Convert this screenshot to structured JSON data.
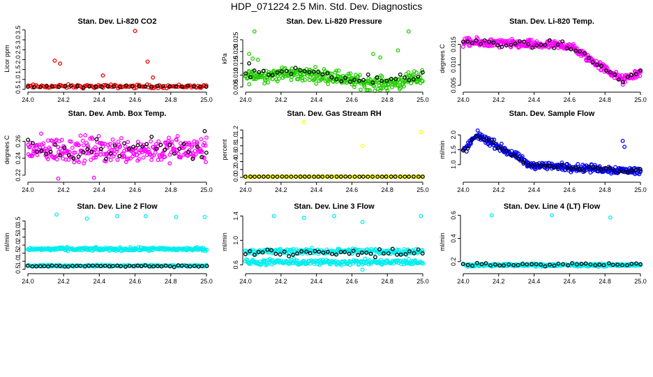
{
  "title": "HDP_071224  2.5 Min. Std. Dev. Diagnostics",
  "colors": {
    "red": "#ee0000",
    "green": "#22cc00",
    "magenta": "#ff00ff",
    "yellow": "#ffff00",
    "blue": "#0000ee",
    "cyan": "#00eeee",
    "black": "#000000"
  },
  "chart_data": [
    {
      "type": "scatter",
      "title": "Stan. Dev. Li-820 CO2",
      "ylabel": "Licor ppm",
      "xlim": [
        24.0,
        25.0
      ],
      "ylim": [
        0.5,
        3.6
      ],
      "xticks": [
        "24.0",
        "24.2",
        "24.4",
        "24.6",
        "24.8",
        "25.0"
      ],
      "yticks": [
        "0.5",
        "1.0",
        "1.5",
        "2.0",
        "2.5",
        "3.0",
        "3.5"
      ],
      "series": [
        {
          "name": "all",
          "color": "red",
          "n": 130,
          "base": 0.65,
          "noise": 0.08,
          "trend": 0,
          "wave": 0,
          "outliers": [
            [
              24.15,
              1.95
            ],
            [
              24.18,
              1.8
            ],
            [
              24.42,
              1.2
            ],
            [
              24.6,
              3.45
            ],
            [
              24.67,
              1.9
            ],
            [
              24.7,
              1.1
            ],
            [
              24.31,
              0.55
            ]
          ]
        },
        {
          "name": "subset",
          "color": "black",
          "n": 30,
          "base": 0.64,
          "noise": 0.04,
          "trend": 0,
          "wave": 0,
          "outliers": []
        }
      ]
    },
    {
      "type": "scatter",
      "title": "Stan. Dev. Li-820 Pressure",
      "ylabel": "kPa",
      "xlim": [
        24.0,
        25.0
      ],
      "ylim": [
        0.004,
        0.03
      ],
      "xticks": [
        "24.0",
        "24.2",
        "24.4",
        "24.6",
        "24.8",
        "25.0"
      ],
      "yticks": [
        "0.005",
        "0.010",
        "0.015",
        "0.020",
        "0.025"
      ],
      "series": [
        {
          "name": "all",
          "color": "green",
          "n": 320,
          "base": 0.0095,
          "noise": 0.0025,
          "trend": 0.002,
          "wave": 0,
          "outliers": [
            [
              24.05,
              0.0285
            ],
            [
              24.02,
              0.019
            ],
            [
              24.04,
              0.017
            ],
            [
              24.07,
              0.0165
            ],
            [
              24.92,
              0.0285
            ],
            [
              24.86,
              0.0205
            ],
            [
              24.72,
              0.019
            ],
            [
              24.76,
              0.0175
            ]
          ]
        },
        {
          "name": "subset",
          "color": "black",
          "n": 40,
          "base": 0.0105,
          "noise": 0.002,
          "trend": 0.002,
          "wave": 0,
          "outliers": [
            [
              24.02,
              0.015
            ]
          ]
        }
      ]
    },
    {
      "type": "scatter",
      "title": "Stan. Dev. Li-820 Temp.",
      "ylabel": "degrees C",
      "xlim": [
        24.0,
        25.0
      ],
      "ylim": [
        0.004,
        0.019
      ],
      "xticks": [
        "24.0",
        "24.2",
        "24.4",
        "24.6",
        "24.8",
        "25.0"
      ],
      "yticks": [
        "0.005",
        "0.010",
        "0.015"
      ],
      "series": [
        {
          "name": "all",
          "color": "magenta",
          "n": 330,
          "profile": "temp",
          "noise": 0.0009,
          "outliers": []
        },
        {
          "name": "subset",
          "color": "black",
          "n": 42,
          "profile": "temp",
          "noise": 0.0008,
          "outliers": []
        }
      ]
    },
    {
      "type": "scatter",
      "title": "Stan. Dev. Amb. Box Temp.",
      "ylabel": "degrees C",
      "xlim": [
        24.0,
        25.0
      ],
      "ylim": [
        0.215,
        0.285
      ],
      "xticks": [
        "24.0",
        "24.2",
        "24.4",
        "24.6",
        "24.8",
        "25.0"
      ],
      "yticks": [
        "0.22",
        "0.24",
        "0.26"
      ],
      "series": [
        {
          "name": "all",
          "color": "magenta",
          "n": 300,
          "base": 0.25,
          "noise": 0.013,
          "trend": 0,
          "wave": 0,
          "outliers": [
            [
              24.17,
              0.216
            ],
            [
              24.37,
              0.217
            ]
          ]
        },
        {
          "name": "subset",
          "color": "black",
          "n": 40,
          "base": 0.25,
          "noise": 0.012,
          "trend": 0,
          "wave": 0,
          "outliers": [
            [
              24.99,
              0.272
            ]
          ]
        }
      ]
    },
    {
      "type": "scatter",
      "title": "Stan. Dev. Gas Stream RH",
      "ylabel": "percent",
      "xlim": [
        24.0,
        25.0
      ],
      "ylim": [
        -0.05,
        1.45
      ],
      "xticks": [
        "24.0",
        "24.2",
        "24.4",
        "24.6",
        "24.8",
        "25.0"
      ],
      "yticks": [
        "0.0",
        "0.2",
        "0.4",
        "0.6",
        "0.8",
        "1.0",
        "1.2"
      ],
      "series": [
        {
          "name": "all",
          "color": "yellow",
          "n": 160,
          "base": 0.02,
          "noise": 0.003,
          "trend": 0,
          "wave": 0,
          "outliers": [
            [
              24.33,
              1.4
            ],
            [
              24.66,
              0.8
            ],
            [
              24.99,
              1.15
            ],
            [
              24.01,
              0.0
            ]
          ]
        },
        {
          "name": "subset",
          "color": "black",
          "n": 40,
          "base": 0.02,
          "noise": 0.002,
          "trend": 0,
          "wave": 0,
          "outliers": []
        }
      ]
    },
    {
      "type": "scatter",
      "title": "Stan. Dev. Sample Flow",
      "ylabel": "ml/min",
      "xlim": [
        24.0,
        25.0
      ],
      "ylim": [
        0.5,
        2.5
      ],
      "xticks": [
        "24.0",
        "24.2",
        "24.4",
        "24.6",
        "24.8",
        "25.0"
      ],
      "yticks": [
        "1.0",
        "1.5",
        "2.0"
      ],
      "series": [
        {
          "name": "all",
          "color": "blue",
          "n": 340,
          "profile": "flow",
          "noise": 0.11,
          "outliers": [
            [
              24.9,
              1.8
            ],
            [
              24.91,
              1.6
            ]
          ]
        },
        {
          "name": "subset",
          "color": "black",
          "n": 42,
          "profile": "flow",
          "noise": 0.06,
          "outliers": []
        }
      ]
    },
    {
      "type": "scatter",
      "title": "Stan. Dev. Line 2 Flow",
      "ylabel": "ml/min",
      "xlim": [
        24.0,
        25.0
      ],
      "ylim": [
        0.4,
        4.0
      ],
      "xticks": [
        "24.0",
        "24.2",
        "24.4",
        "24.6",
        "24.8",
        "25.0"
      ],
      "yticks": [
        "0.5",
        "1.0",
        "1.5",
        "2.0",
        "2.5",
        "3.0",
        "3.5"
      ],
      "series": [
        {
          "name": "upper",
          "color": "cyan",
          "n": 260,
          "base": 1.75,
          "noise": 0.09,
          "trend": 0,
          "wave": 0,
          "outliers": [
            [
              24.16,
              3.9
            ],
            [
              24.33,
              3.65
            ],
            [
              24.5,
              3.8
            ],
            [
              24.66,
              3.8
            ],
            [
              24.83,
              3.75
            ],
            [
              24.99,
              3.75
            ]
          ]
        },
        {
          "name": "lower",
          "color": "cyan",
          "n": 170,
          "base": 0.72,
          "noise": 0.05,
          "trend": 0,
          "wave": 0,
          "outliers": []
        },
        {
          "name": "subset",
          "color": "black",
          "n": 45,
          "base": 0.7,
          "noise": 0.04,
          "trend": 0,
          "wave": 0,
          "outliers": []
        }
      ]
    },
    {
      "type": "scatter",
      "title": "Stan. Dev. Line 3 Flow",
      "ylabel": "ml/min",
      "xlim": [
        24.0,
        25.0
      ],
      "ylim": [
        0.5,
        1.45
      ],
      "xticks": [
        "24.0",
        "24.2",
        "24.4",
        "24.6",
        "24.8",
        "25.0"
      ],
      "yticks": [
        "0.6",
        "1.0",
        "1.4"
      ],
      "series": [
        {
          "name": "upper",
          "color": "cyan",
          "n": 240,
          "base": 0.82,
          "noise": 0.04,
          "trend": 0,
          "wave": 0,
          "outliers": [
            [
              24.16,
              1.4
            ],
            [
              24.33,
              1.37
            ],
            [
              24.5,
              1.4
            ],
            [
              24.66,
              1.3
            ],
            [
              24.99,
              1.4
            ]
          ]
        },
        {
          "name": "lower",
          "color": "cyan",
          "n": 240,
          "base": 0.64,
          "noise": 0.04,
          "trend": 0,
          "wave": 0,
          "outliers": [
            [
              24.66,
              0.52
            ]
          ]
        },
        {
          "name": "subset",
          "color": "black",
          "n": 42,
          "base": 0.8,
          "noise": 0.05,
          "trend": 0,
          "wave": 0,
          "outliers": []
        }
      ]
    },
    {
      "type": "scatter",
      "title": "Stan. Dev. Line 4 (LT) Flow",
      "ylabel": "ml/min",
      "xlim": [
        24.0,
        25.0
      ],
      "ylim": [
        0.12,
        0.62
      ],
      "xticks": [
        "24.0",
        "24.2",
        "24.4",
        "24.6",
        "24.8",
        "25.0"
      ],
      "yticks": [
        "0.2",
        "0.4",
        "0.6"
      ],
      "series": [
        {
          "name": "all",
          "color": "cyan",
          "n": 330,
          "base": 0.17,
          "noise": 0.01,
          "trend": 0,
          "wave": 0,
          "outliers": [
            [
              24.16,
              0.6
            ],
            [
              24.5,
              0.6
            ],
            [
              24.83,
              0.58
            ]
          ]
        },
        {
          "name": "subset",
          "color": "black",
          "n": 40,
          "base": 0.175,
          "noise": 0.01,
          "trend": 0,
          "wave": 0,
          "outliers": []
        }
      ]
    }
  ]
}
